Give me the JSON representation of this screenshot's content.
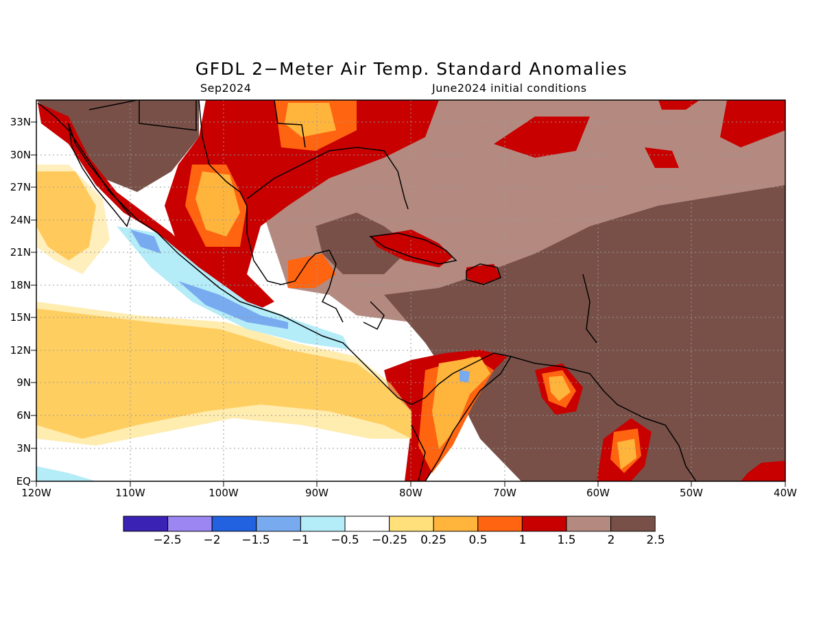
{
  "map": {
    "title": "GFDL 2−Meter Air Temp. Standard Anomalies",
    "valid_month": "Sep2024",
    "init_text": "June2024 initial conditions",
    "lat_labels": [
      "33N",
      "30N",
      "27N",
      "24N",
      "21N",
      "18N",
      "15N",
      "12N",
      "9N",
      "6N",
      "3N",
      "EQ"
    ],
    "lon_labels": [
      "120W",
      "110W",
      "100W",
      "90W",
      "80W",
      "70W",
      "60W",
      "50W",
      "40W"
    ]
  },
  "colorbar": {
    "colors": [
      "#3a22b4",
      "#9b86f2",
      "#2262e0",
      "#78aaf0",
      "#b4ecf8",
      "#ffffff",
      "#ffe07a",
      "#ffb43c",
      "#ff6410",
      "#c80000",
      "#b48a80",
      "#785048"
    ],
    "labels": [
      "−2.5",
      "−2",
      "−1.5",
      "−1",
      "−0.5",
      "−0.25",
      "0.25",
      "0.5",
      "1",
      "1.5",
      "2",
      "2.5"
    ]
  }
}
